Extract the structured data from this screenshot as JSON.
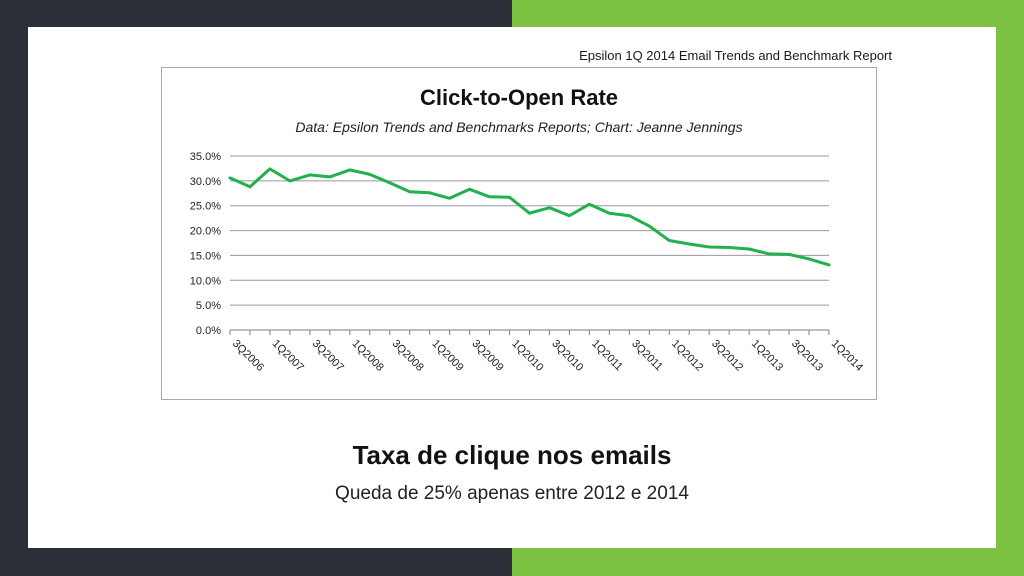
{
  "colors": {
    "left_bg": "#2a2f38",
    "right_bg": "#7cc142",
    "line": "#22b14c",
    "grid": "#999999"
  },
  "source_note": "Epsilon 1Q 2014 Email Trends and Benchmark Report",
  "headline": "Taxa de clique nos emails",
  "subline": "Queda de 25% apenas entre 2012 e 2014",
  "chart_data": {
    "type": "line",
    "title": "Click-to-Open Rate",
    "subtitle": "Data: Epsilon Trends and Benchmarks Reports; Chart: Jeanne Jennings",
    "xlabel": "",
    "ylabel": "",
    "ylim": [
      0,
      35
    ],
    "y_ticks": [
      "0.0%",
      "5.0%",
      "10.0%",
      "15.0%",
      "20.0%",
      "25.0%",
      "30.0%",
      "35.0%"
    ],
    "grid": true,
    "categories": [
      "3Q2006",
      "4Q2006",
      "1Q2007",
      "2Q2007",
      "3Q2007",
      "4Q2007",
      "1Q2008",
      "2Q2008",
      "3Q2008",
      "4Q2008",
      "1Q2009",
      "2Q2009",
      "3Q2009",
      "4Q2009",
      "1Q2010",
      "2Q2010",
      "3Q2010",
      "4Q2010",
      "1Q2011",
      "2Q2011",
      "3Q2011",
      "4Q2011",
      "1Q2012",
      "2Q2012",
      "3Q2012",
      "4Q2012",
      "1Q2013",
      "2Q2013",
      "3Q2013",
      "4Q2013",
      "1Q2014"
    ],
    "labeled_categories": [
      "3Q2006",
      "1Q2007",
      "3Q2007",
      "1Q2008",
      "3Q2008",
      "1Q2009",
      "3Q2009",
      "1Q2010",
      "3Q2010",
      "1Q2011",
      "3Q2011",
      "1Q2012",
      "3Q2012",
      "1Q2013",
      "3Q2013",
      "1Q2014"
    ],
    "series": [
      {
        "values": [
          30.6,
          28.8,
          32.4,
          30.0,
          31.2,
          30.8,
          32.2,
          31.3,
          29.6,
          27.8,
          27.6,
          26.5,
          28.3,
          26.8,
          26.7,
          23.5,
          24.6,
          23.0,
          25.3,
          23.5,
          23.0,
          20.9,
          18.0,
          17.3,
          16.7,
          16.6,
          16.3,
          15.3,
          15.2,
          14.3,
          13.1
        ]
      }
    ]
  }
}
